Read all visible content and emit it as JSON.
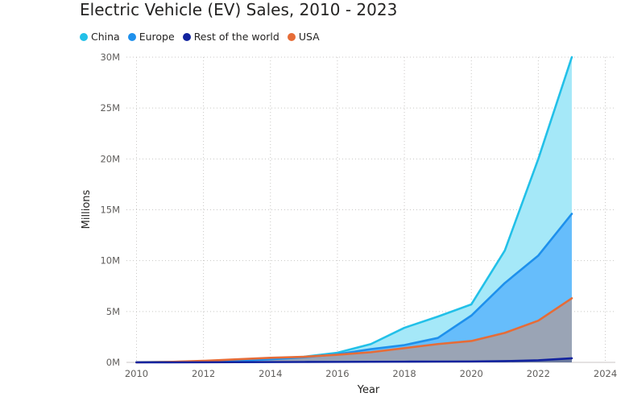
{
  "chart_data": {
    "type": "area",
    "title": "Electric Vehicle (EV) Sales, 2010 - 2023",
    "xlabel": "Year",
    "ylabel": "Millions",
    "x": [
      2010,
      2011,
      2012,
      2013,
      2014,
      2015,
      2016,
      2017,
      2018,
      2019,
      2020,
      2021,
      2022,
      2023
    ],
    "x_ticks": [
      2010,
      2012,
      2014,
      2016,
      2018,
      2020,
      2022,
      2024
    ],
    "x_tick_labels": [
      "2010",
      "2012",
      "2014",
      "2016",
      "2018",
      "2020",
      "2022",
      "2024"
    ],
    "xlim": [
      2009.7,
      2024.3
    ],
    "y_ticks": [
      0,
      5,
      10,
      15,
      20,
      25,
      30
    ],
    "y_tick_labels": [
      "0M",
      "5M",
      "10M",
      "15M",
      "20M",
      "25M",
      "30M"
    ],
    "ylim": [
      0,
      30
    ],
    "y_unit": "millions",
    "grid": true,
    "legend_position": "top-left",
    "series": [
      {
        "name": "China",
        "color": "#22c0e8",
        "fill": "#a5e8f8",
        "values": [
          0.02,
          0.05,
          0.1,
          0.2,
          0.35,
          0.55,
          0.95,
          1.8,
          3.4,
          4.5,
          5.7,
          11.0,
          20.0,
          30.0
        ]
      },
      {
        "name": "Europe",
        "color": "#1e90ec",
        "fill": "#66bdfb",
        "values": [
          0.02,
          0.04,
          0.08,
          0.15,
          0.3,
          0.5,
          0.8,
          1.3,
          1.7,
          2.4,
          4.6,
          7.8,
          10.5,
          14.6
        ]
      },
      {
        "name": "Rest of the world",
        "color": "#12239e",
        "fill": "#6b7a9e",
        "values": [
          0.0,
          0.0,
          0.01,
          0.02,
          0.03,
          0.04,
          0.05,
          0.06,
          0.07,
          0.08,
          0.09,
          0.12,
          0.2,
          0.4
        ]
      },
      {
        "name": "USA",
        "color": "#e66c37",
        "fill": "#9aa4b5",
        "values": [
          0.0,
          0.05,
          0.15,
          0.3,
          0.45,
          0.55,
          0.75,
          1.0,
          1.4,
          1.8,
          2.1,
          2.9,
          4.1,
          6.3
        ]
      }
    ]
  }
}
